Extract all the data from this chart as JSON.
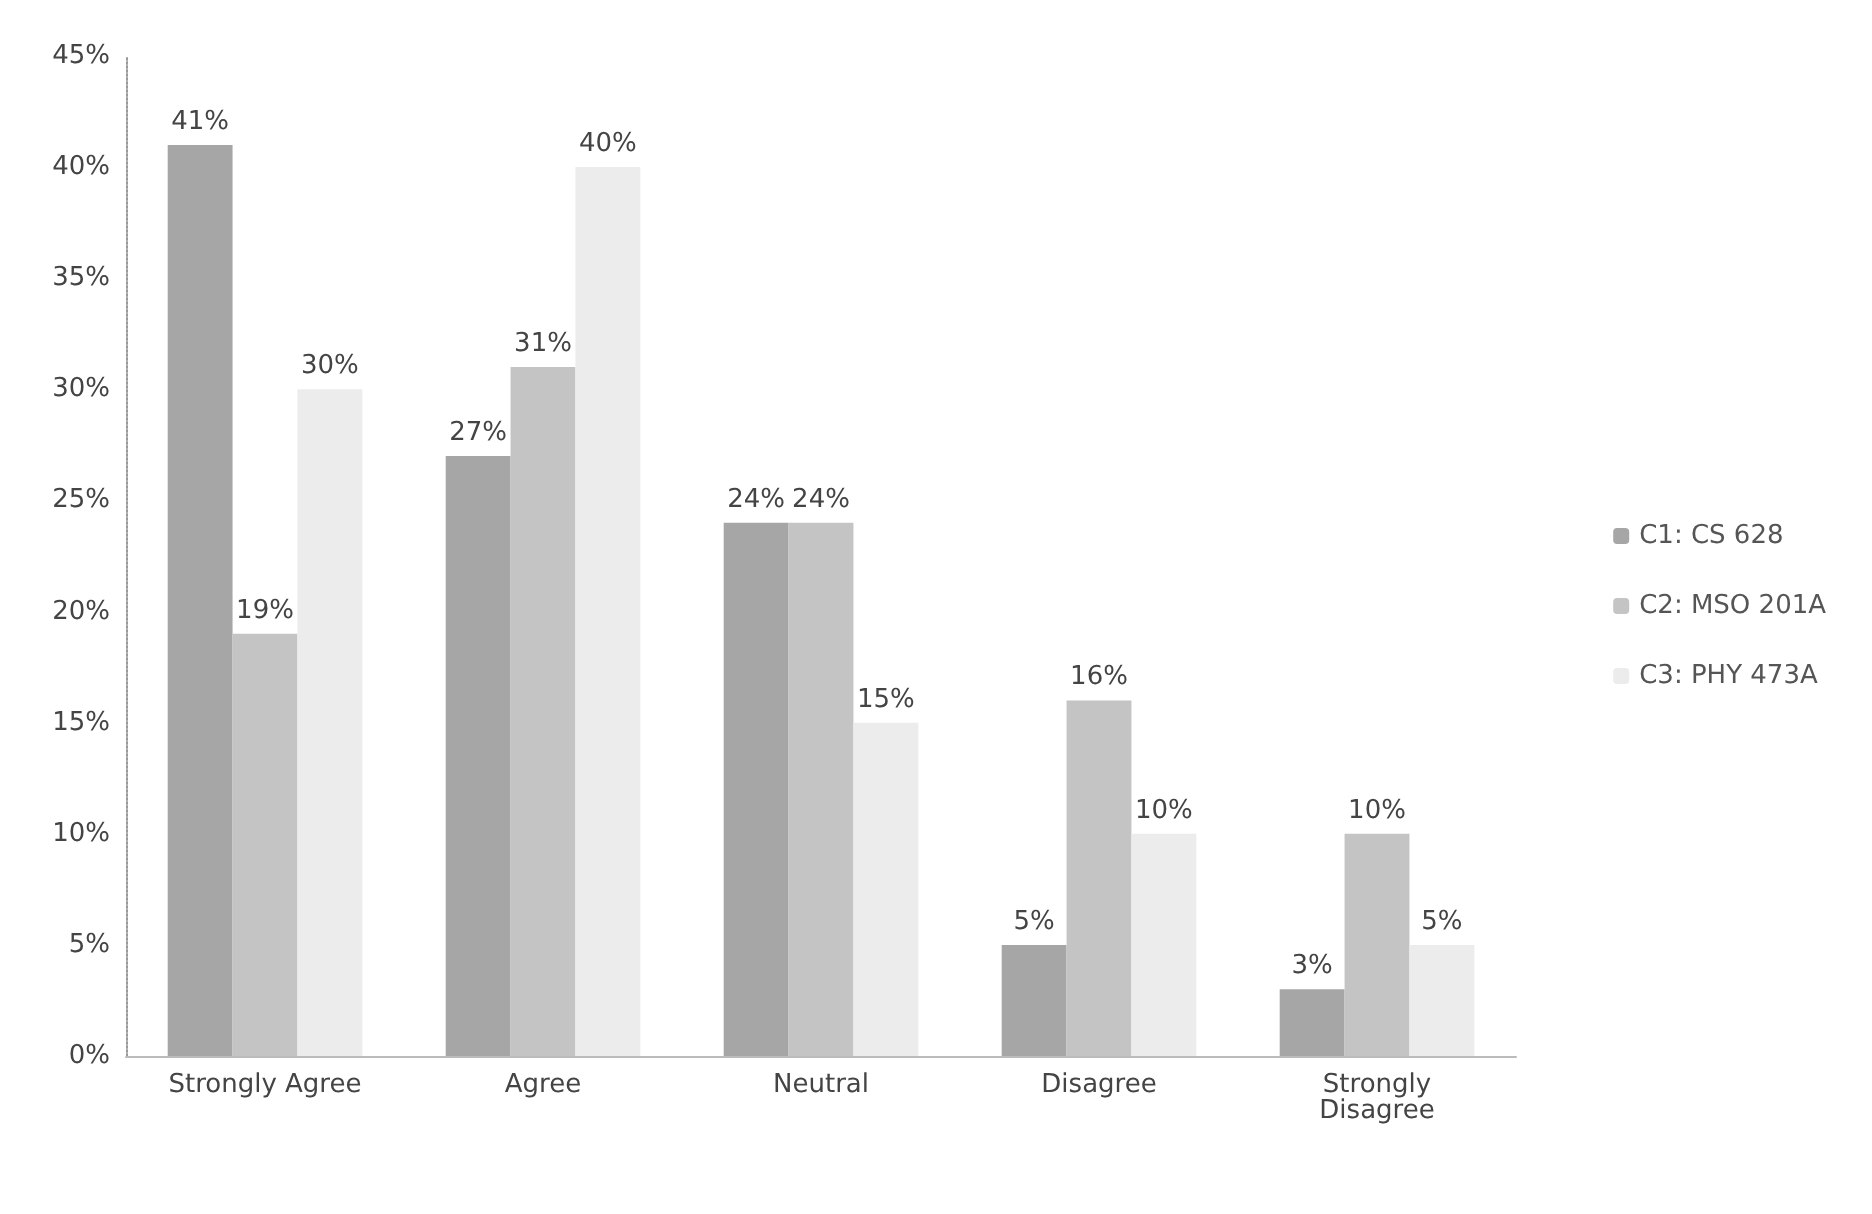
{
  "chart_data": {
    "type": "bar",
    "categories": [
      "Strongly Agree",
      "Agree",
      "Neutral",
      "Disagree",
      "Strongly\nDisagree"
    ],
    "series": [
      {
        "name": "C1: CS 628",
        "color": "#a6a6a6",
        "values": [
          41,
          27,
          24,
          5,
          3
        ],
        "value_labels": [
          "41%",
          "27%",
          "24%",
          "5%",
          "3%"
        ]
      },
      {
        "name": "C2: MSO 201A",
        "color": "#c4c4c4",
        "values": [
          19,
          31,
          24,
          16,
          10
        ],
        "value_labels": [
          "19%",
          "31%",
          "24%",
          "16%",
          "10%"
        ]
      },
      {
        "name": "C3: PHY 473A",
        "color": "#ececec",
        "values": [
          30,
          40,
          15,
          10,
          5
        ],
        "value_labels": [
          "30%",
          "40%",
          "15%",
          "10%",
          "5%"
        ]
      }
    ],
    "ylim": [
      0,
      45
    ],
    "yticks": [
      {
        "value": 0,
        "label": "0%"
      },
      {
        "value": 5,
        "label": "5%"
      },
      {
        "value": 10,
        "label": "10%"
      },
      {
        "value": 15,
        "label": "15%"
      },
      {
        "value": 20,
        "label": "20%"
      },
      {
        "value": 25,
        "label": "25%"
      },
      {
        "value": 30,
        "label": "30%"
      },
      {
        "value": 35,
        "label": "35%"
      },
      {
        "value": 40,
        "label": "40%"
      },
      {
        "value": 45,
        "label": "45%"
      }
    ],
    "grid": false,
    "legend": "right"
  }
}
